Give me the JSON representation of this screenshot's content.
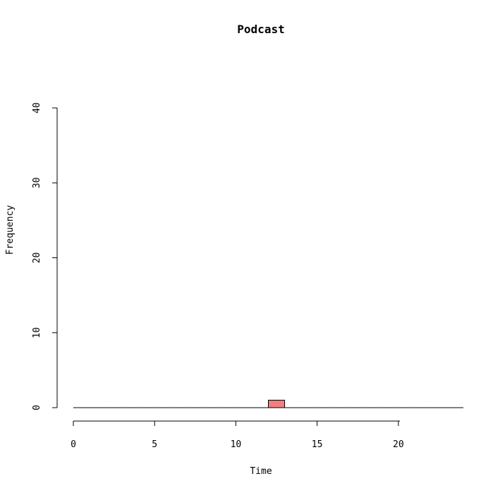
{
  "chart_data": {
    "type": "bar",
    "title": "Podcast",
    "xlabel": "Time",
    "ylabel": "Frequency",
    "xlim": [
      0,
      24
    ],
    "ylim": [
      0,
      40
    ],
    "x_ticks": [
      "0",
      "5",
      "10",
      "15",
      "20"
    ],
    "y_ticks": [
      "0",
      "10",
      "20",
      "30",
      "40"
    ],
    "bins": [
      {
        "start": 0,
        "end": 1,
        "count": 0
      },
      {
        "start": 1,
        "end": 2,
        "count": 0
      },
      {
        "start": 2,
        "end": 3,
        "count": 0
      },
      {
        "start": 3,
        "end": 4,
        "count": 0
      },
      {
        "start": 4,
        "end": 5,
        "count": 0
      },
      {
        "start": 5,
        "end": 6,
        "count": 0
      },
      {
        "start": 6,
        "end": 7,
        "count": 0
      },
      {
        "start": 7,
        "end": 8,
        "count": 0
      },
      {
        "start": 8,
        "end": 9,
        "count": 0
      },
      {
        "start": 9,
        "end": 10,
        "count": 0
      },
      {
        "start": 10,
        "end": 11,
        "count": 0
      },
      {
        "start": 11,
        "end": 12,
        "count": 0
      },
      {
        "start": 12,
        "end": 13,
        "count": 1
      },
      {
        "start": 13,
        "end": 14,
        "count": 0
      },
      {
        "start": 14,
        "end": 15,
        "count": 0
      },
      {
        "start": 15,
        "end": 16,
        "count": 0
      },
      {
        "start": 16,
        "end": 17,
        "count": 0
      },
      {
        "start": 17,
        "end": 18,
        "count": 0
      },
      {
        "start": 18,
        "end": 19,
        "count": 0
      },
      {
        "start": 19,
        "end": 20,
        "count": 0
      },
      {
        "start": 20,
        "end": 21,
        "count": 0
      },
      {
        "start": 21,
        "end": 22,
        "count": 0
      },
      {
        "start": 22,
        "end": 23,
        "count": 0
      },
      {
        "start": 23,
        "end": 24,
        "count": 0
      }
    ],
    "bar_color": "#f08080",
    "grid": false,
    "legend": "none"
  }
}
